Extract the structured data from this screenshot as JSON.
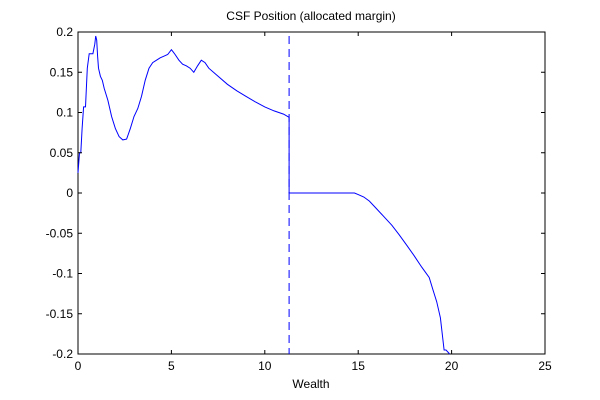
{
  "chart_data": {
    "type": "line",
    "title": "CSF Position (allocated margin)",
    "xlabel": "Wealth",
    "ylabel": "",
    "xlim": [
      0,
      25
    ],
    "ylim": [
      -0.2,
      0.2
    ],
    "xticks": [
      0,
      5,
      10,
      15,
      20,
      25
    ],
    "xtick_labels": [
      "0",
      "5",
      "10",
      "15",
      "20",
      "25"
    ],
    "yticks": [
      -0.2,
      -0.15,
      -0.1,
      -0.05,
      0,
      0.05,
      0.1,
      0.15,
      0.2
    ],
    "ytick_labels": [
      "-0.2",
      "-0.15",
      "-0.1",
      "-0.05",
      "0",
      "0.05",
      "0.1",
      "0.15",
      "0.2"
    ],
    "grid": false,
    "line_color": "#0000ff",
    "series": [
      {
        "style": "solid",
        "x": [
          0.0,
          0.08,
          0.15,
          0.22,
          0.3,
          0.32,
          0.4,
          0.5,
          0.6,
          0.65,
          0.7,
          0.8,
          0.9,
          0.95,
          1.0,
          1.05,
          1.1,
          1.2,
          1.3,
          1.4,
          1.6,
          1.8,
          2.0,
          2.2,
          2.4,
          2.6,
          2.8,
          3.0,
          3.2,
          3.4,
          3.6,
          3.8,
          4.0,
          4.2,
          4.4,
          4.6,
          4.8,
          5.0,
          5.1,
          5.2,
          5.4,
          5.6,
          5.8,
          6.0,
          6.2,
          6.4,
          6.6,
          6.8,
          7.0,
          7.5,
          8.0,
          8.5,
          9.0,
          9.5,
          10.0,
          10.5,
          11.0,
          11.3,
          11.3,
          11.5,
          12.0,
          13.0,
          14.0,
          14.8,
          15.0,
          15.3,
          15.6,
          16.0,
          16.4,
          16.8,
          17.2,
          17.6,
          18.0,
          18.4,
          18.8,
          19.0,
          19.2,
          19.4,
          19.6,
          19.7,
          19.9
        ],
        "y": [
          0.025,
          0.05,
          0.05,
          0.08,
          0.107,
          0.107,
          0.107,
          0.155,
          0.173,
          0.173,
          0.173,
          0.173,
          0.185,
          0.195,
          0.19,
          0.17,
          0.155,
          0.145,
          0.14,
          0.13,
          0.115,
          0.095,
          0.08,
          0.07,
          0.066,
          0.067,
          0.08,
          0.095,
          0.105,
          0.12,
          0.14,
          0.155,
          0.162,
          0.165,
          0.168,
          0.17,
          0.172,
          0.178,
          0.175,
          0.172,
          0.165,
          0.16,
          0.158,
          0.155,
          0.15,
          0.158,
          0.165,
          0.162,
          0.155,
          0.145,
          0.135,
          0.127,
          0.12,
          0.113,
          0.107,
          0.102,
          0.098,
          0.094,
          0.0,
          0.0,
          0.0,
          0.0,
          0.0,
          0.0,
          -0.002,
          -0.005,
          -0.01,
          -0.02,
          -0.03,
          -0.04,
          -0.052,
          -0.065,
          -0.078,
          -0.092,
          -0.105,
          -0.12,
          -0.135,
          -0.155,
          -0.195,
          -0.195,
          -0.2
        ]
      },
      {
        "style": "dashed",
        "x": [
          11.3,
          11.3
        ],
        "y": [
          0.195,
          -0.2
        ]
      }
    ]
  }
}
